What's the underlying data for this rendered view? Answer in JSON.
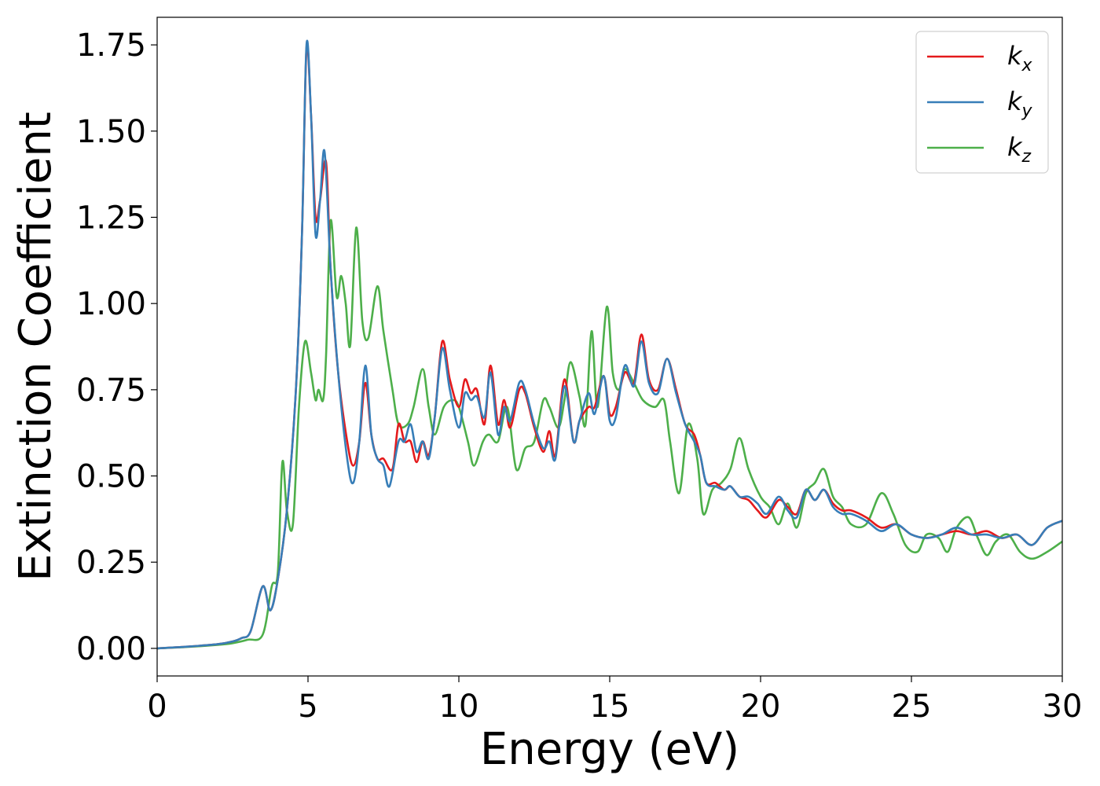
{
  "chart_data": {
    "type": "line",
    "title": "",
    "xlabel": "Energy (eV)",
    "ylabel": "Extinction Coefficient",
    "xlim": [
      0,
      30
    ],
    "ylim": [
      -0.08,
      1.83
    ],
    "xticks": [
      0,
      5,
      10,
      15,
      20,
      25,
      30
    ],
    "xtick_labels": [
      "0",
      "5",
      "10",
      "15",
      "20",
      "25",
      "30"
    ],
    "yticks": [
      0.0,
      0.25,
      0.5,
      0.75,
      1.0,
      1.25,
      1.5,
      1.75
    ],
    "ytick_labels": [
      "0.00",
      "0.25",
      "0.50",
      "0.75",
      "1.00",
      "1.25",
      "1.50",
      "1.75"
    ],
    "grid": false,
    "legend_position": "top-right",
    "series": [
      {
        "name": "k_x",
        "label_main": "k",
        "label_sub": "x",
        "color": "#e41a1c",
        "points": [
          [
            0,
            0
          ],
          [
            1,
            0.005
          ],
          [
            2,
            0.012
          ],
          [
            2.5,
            0.02
          ],
          [
            2.8,
            0.03
          ],
          [
            3.1,
            0.05
          ],
          [
            3.5,
            0.18
          ],
          [
            3.75,
            0.11
          ],
          [
            4.0,
            0.2
          ],
          [
            4.3,
            0.4
          ],
          [
            4.6,
            0.75
          ],
          [
            4.8,
            1.2
          ],
          [
            4.95,
            1.74
          ],
          [
            5.1,
            1.55
          ],
          [
            5.25,
            1.25
          ],
          [
            5.4,
            1.3
          ],
          [
            5.6,
            1.41
          ],
          [
            5.75,
            1.1
          ],
          [
            6.0,
            0.8
          ],
          [
            6.3,
            0.6
          ],
          [
            6.5,
            0.53
          ],
          [
            6.7,
            0.6
          ],
          [
            6.9,
            0.77
          ],
          [
            7.1,
            0.62
          ],
          [
            7.3,
            0.55
          ],
          [
            7.5,
            0.55
          ],
          [
            7.8,
            0.52
          ],
          [
            8.0,
            0.65
          ],
          [
            8.2,
            0.6
          ],
          [
            8.4,
            0.6
          ],
          [
            8.6,
            0.54
          ],
          [
            8.8,
            0.6
          ],
          [
            9.0,
            0.56
          ],
          [
            9.2,
            0.67
          ],
          [
            9.45,
            0.89
          ],
          [
            9.7,
            0.78
          ],
          [
            10.0,
            0.7
          ],
          [
            10.2,
            0.78
          ],
          [
            10.4,
            0.74
          ],
          [
            10.6,
            0.75
          ],
          [
            10.85,
            0.65
          ],
          [
            11.05,
            0.82
          ],
          [
            11.3,
            0.65
          ],
          [
            11.5,
            0.72
          ],
          [
            11.7,
            0.64
          ],
          [
            12.0,
            0.75
          ],
          [
            12.2,
            0.74
          ],
          [
            12.5,
            0.64
          ],
          [
            12.8,
            0.57
          ],
          [
            13.0,
            0.63
          ],
          [
            13.2,
            0.56
          ],
          [
            13.5,
            0.78
          ],
          [
            13.8,
            0.6
          ],
          [
            14.0,
            0.66
          ],
          [
            14.3,
            0.7
          ],
          [
            14.5,
            0.7
          ],
          [
            14.8,
            0.79
          ],
          [
            15.0,
            0.68
          ],
          [
            15.2,
            0.7
          ],
          [
            15.5,
            0.8
          ],
          [
            15.8,
            0.77
          ],
          [
            16.05,
            0.91
          ],
          [
            16.3,
            0.78
          ],
          [
            16.6,
            0.75
          ],
          [
            16.9,
            0.84
          ],
          [
            17.2,
            0.75
          ],
          [
            17.5,
            0.65
          ],
          [
            17.8,
            0.62
          ],
          [
            18.0,
            0.56
          ],
          [
            18.2,
            0.48
          ],
          [
            18.5,
            0.48
          ],
          [
            18.8,
            0.46
          ],
          [
            19.0,
            0.47
          ],
          [
            19.3,
            0.44
          ],
          [
            19.6,
            0.43
          ],
          [
            19.9,
            0.4
          ],
          [
            20.2,
            0.38
          ],
          [
            20.6,
            0.43
          ],
          [
            20.9,
            0.41
          ],
          [
            21.2,
            0.39
          ],
          [
            21.5,
            0.46
          ],
          [
            21.8,
            0.43
          ],
          [
            22.1,
            0.46
          ],
          [
            22.4,
            0.42
          ],
          [
            22.7,
            0.4
          ],
          [
            23.0,
            0.4
          ],
          [
            23.5,
            0.38
          ],
          [
            24.0,
            0.35
          ],
          [
            24.5,
            0.36
          ],
          [
            25.0,
            0.33
          ],
          [
            25.5,
            0.32
          ],
          [
            26.0,
            0.33
          ],
          [
            26.5,
            0.34
          ],
          [
            27.0,
            0.33
          ],
          [
            27.5,
            0.34
          ],
          [
            28.0,
            0.32
          ],
          [
            28.5,
            0.33
          ],
          [
            29.0,
            0.3
          ],
          [
            29.5,
            0.35
          ],
          [
            30.0,
            0.37
          ]
        ]
      },
      {
        "name": "k_y",
        "label_main": "k",
        "label_sub": "y",
        "color": "#377eb8",
        "points": [
          [
            0,
            0
          ],
          [
            1,
            0.005
          ],
          [
            2,
            0.012
          ],
          [
            2.5,
            0.02
          ],
          [
            2.8,
            0.03
          ],
          [
            3.1,
            0.05
          ],
          [
            3.5,
            0.18
          ],
          [
            3.75,
            0.11
          ],
          [
            4.0,
            0.2
          ],
          [
            4.3,
            0.4
          ],
          [
            4.6,
            0.75
          ],
          [
            4.8,
            1.2
          ],
          [
            4.95,
            1.75
          ],
          [
            5.1,
            1.55
          ],
          [
            5.25,
            1.2
          ],
          [
            5.4,
            1.3
          ],
          [
            5.55,
            1.44
          ],
          [
            5.75,
            1.1
          ],
          [
            6.0,
            0.8
          ],
          [
            6.3,
            0.55
          ],
          [
            6.5,
            0.48
          ],
          [
            6.7,
            0.6
          ],
          [
            6.9,
            0.82
          ],
          [
            7.1,
            0.62
          ],
          [
            7.3,
            0.55
          ],
          [
            7.5,
            0.53
          ],
          [
            7.7,
            0.47
          ],
          [
            8.0,
            0.6
          ],
          [
            8.2,
            0.6
          ],
          [
            8.4,
            0.65
          ],
          [
            8.6,
            0.57
          ],
          [
            8.8,
            0.6
          ],
          [
            9.0,
            0.55
          ],
          [
            9.2,
            0.67
          ],
          [
            9.45,
            0.87
          ],
          [
            9.7,
            0.75
          ],
          [
            10.0,
            0.64
          ],
          [
            10.2,
            0.74
          ],
          [
            10.4,
            0.72
          ],
          [
            10.6,
            0.73
          ],
          [
            10.85,
            0.67
          ],
          [
            11.05,
            0.8
          ],
          [
            11.3,
            0.62
          ],
          [
            11.5,
            0.7
          ],
          [
            11.7,
            0.66
          ],
          [
            12.0,
            0.77
          ],
          [
            12.2,
            0.75
          ],
          [
            12.5,
            0.65
          ],
          [
            12.8,
            0.58
          ],
          [
            13.0,
            0.6
          ],
          [
            13.2,
            0.55
          ],
          [
            13.5,
            0.76
          ],
          [
            13.8,
            0.6
          ],
          [
            14.0,
            0.66
          ],
          [
            14.3,
            0.74
          ],
          [
            14.5,
            0.68
          ],
          [
            14.8,
            0.79
          ],
          [
            15.0,
            0.66
          ],
          [
            15.2,
            0.67
          ],
          [
            15.5,
            0.82
          ],
          [
            15.8,
            0.76
          ],
          [
            16.05,
            0.89
          ],
          [
            16.3,
            0.77
          ],
          [
            16.6,
            0.74
          ],
          [
            16.9,
            0.84
          ],
          [
            17.2,
            0.74
          ],
          [
            17.5,
            0.65
          ],
          [
            17.8,
            0.6
          ],
          [
            18.0,
            0.56
          ],
          [
            18.2,
            0.48
          ],
          [
            18.5,
            0.47
          ],
          [
            18.8,
            0.46
          ],
          [
            19.0,
            0.47
          ],
          [
            19.3,
            0.44
          ],
          [
            19.6,
            0.44
          ],
          [
            19.9,
            0.42
          ],
          [
            20.2,
            0.39
          ],
          [
            20.6,
            0.44
          ],
          [
            20.9,
            0.4
          ],
          [
            21.2,
            0.38
          ],
          [
            21.5,
            0.46
          ],
          [
            21.8,
            0.43
          ],
          [
            22.1,
            0.46
          ],
          [
            22.4,
            0.41
          ],
          [
            22.7,
            0.39
          ],
          [
            23.0,
            0.39
          ],
          [
            23.5,
            0.37
          ],
          [
            24.0,
            0.34
          ],
          [
            24.5,
            0.36
          ],
          [
            25.0,
            0.33
          ],
          [
            25.5,
            0.32
          ],
          [
            26.0,
            0.33
          ],
          [
            26.5,
            0.35
          ],
          [
            27.0,
            0.33
          ],
          [
            27.5,
            0.33
          ],
          [
            28.0,
            0.32
          ],
          [
            28.5,
            0.33
          ],
          [
            29.0,
            0.3
          ],
          [
            29.5,
            0.35
          ],
          [
            30.0,
            0.37
          ]
        ]
      },
      {
        "name": "k_z",
        "label_main": "k",
        "label_sub": "z",
        "color": "#4daf4a",
        "points": [
          [
            0,
            0
          ],
          [
            1,
            0.004
          ],
          [
            2,
            0.01
          ],
          [
            2.5,
            0.015
          ],
          [
            3.0,
            0.025
          ],
          [
            3.5,
            0.04
          ],
          [
            3.8,
            0.18
          ],
          [
            4.0,
            0.22
          ],
          [
            4.15,
            0.54
          ],
          [
            4.3,
            0.4
          ],
          [
            4.5,
            0.36
          ],
          [
            4.7,
            0.7
          ],
          [
            4.9,
            0.89
          ],
          [
            5.1,
            0.8
          ],
          [
            5.25,
            0.72
          ],
          [
            5.35,
            0.75
          ],
          [
            5.5,
            0.72
          ],
          [
            5.6,
            0.85
          ],
          [
            5.75,
            1.24
          ],
          [
            5.95,
            1.02
          ],
          [
            6.1,
            1.08
          ],
          [
            6.25,
            1.0
          ],
          [
            6.4,
            0.88
          ],
          [
            6.6,
            1.22
          ],
          [
            6.8,
            0.95
          ],
          [
            7.0,
            0.9
          ],
          [
            7.3,
            1.05
          ],
          [
            7.5,
            0.92
          ],
          [
            7.8,
            0.75
          ],
          [
            8.0,
            0.65
          ],
          [
            8.3,
            0.65
          ],
          [
            8.5,
            0.7
          ],
          [
            8.8,
            0.81
          ],
          [
            9.0,
            0.7
          ],
          [
            9.2,
            0.62
          ],
          [
            9.5,
            0.7
          ],
          [
            9.8,
            0.72
          ],
          [
            10.0,
            0.7
          ],
          [
            10.3,
            0.6
          ],
          [
            10.5,
            0.53
          ],
          [
            10.8,
            0.6
          ],
          [
            11.0,
            0.62
          ],
          [
            11.3,
            0.6
          ],
          [
            11.6,
            0.7
          ],
          [
            11.9,
            0.52
          ],
          [
            12.2,
            0.58
          ],
          [
            12.5,
            0.6
          ],
          [
            12.8,
            0.72
          ],
          [
            13.0,
            0.7
          ],
          [
            13.3,
            0.64
          ],
          [
            13.5,
            0.72
          ],
          [
            13.7,
            0.83
          ],
          [
            14.0,
            0.73
          ],
          [
            14.2,
            0.65
          ],
          [
            14.4,
            0.92
          ],
          [
            14.6,
            0.7
          ],
          [
            14.9,
            0.99
          ],
          [
            15.1,
            0.8
          ],
          [
            15.3,
            0.75
          ],
          [
            15.5,
            0.81
          ],
          [
            15.8,
            0.77
          ],
          [
            16.1,
            0.72
          ],
          [
            16.5,
            0.7
          ],
          [
            16.8,
            0.72
          ],
          [
            17.0,
            0.6
          ],
          [
            17.3,
            0.45
          ],
          [
            17.6,
            0.65
          ],
          [
            17.9,
            0.55
          ],
          [
            18.1,
            0.39
          ],
          [
            18.4,
            0.46
          ],
          [
            18.7,
            0.48
          ],
          [
            19.0,
            0.52
          ],
          [
            19.3,
            0.61
          ],
          [
            19.6,
            0.52
          ],
          [
            20.0,
            0.44
          ],
          [
            20.3,
            0.41
          ],
          [
            20.6,
            0.36
          ],
          [
            20.9,
            0.42
          ],
          [
            21.2,
            0.35
          ],
          [
            21.5,
            0.45
          ],
          [
            21.8,
            0.48
          ],
          [
            22.1,
            0.52
          ],
          [
            22.4,
            0.44
          ],
          [
            22.7,
            0.41
          ],
          [
            23.0,
            0.36
          ],
          [
            23.5,
            0.36
          ],
          [
            24.0,
            0.45
          ],
          [
            24.4,
            0.39
          ],
          [
            24.8,
            0.3
          ],
          [
            25.2,
            0.28
          ],
          [
            25.5,
            0.33
          ],
          [
            25.9,
            0.32
          ],
          [
            26.2,
            0.28
          ],
          [
            26.5,
            0.35
          ],
          [
            26.9,
            0.38
          ],
          [
            27.2,
            0.32
          ],
          [
            27.5,
            0.27
          ],
          [
            27.8,
            0.31
          ],
          [
            28.2,
            0.33
          ],
          [
            28.6,
            0.28
          ],
          [
            29.0,
            0.26
          ],
          [
            29.5,
            0.28
          ],
          [
            30.0,
            0.31
          ]
        ]
      }
    ]
  }
}
